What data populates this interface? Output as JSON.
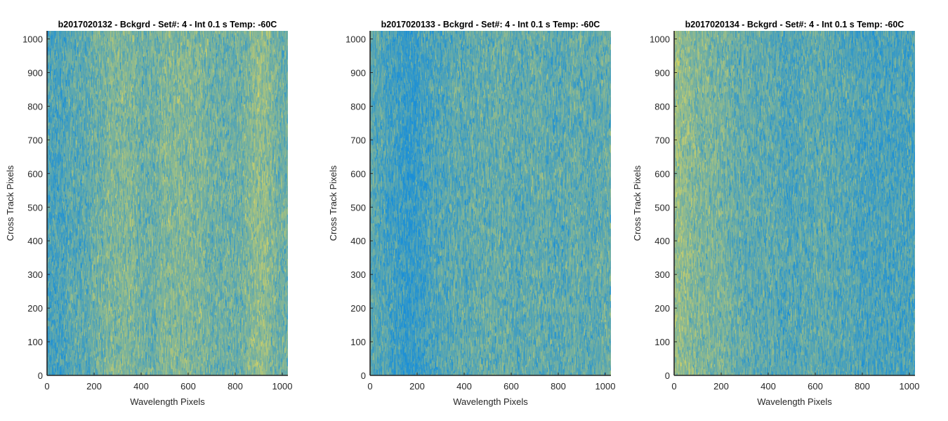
{
  "chart_data": [
    {
      "type": "heatmap",
      "title": "b2017020132 - Bckgrd - Set#: 4 - Int 0.1 s Temp: -60C",
      "xlabel": "Wavelength Pixels",
      "ylabel": "Cross Track Pixels",
      "xlim": [
        0,
        1024
      ],
      "ylim": [
        0,
        1024
      ],
      "xticks": [
        "0",
        "200",
        "400",
        "600",
        "800",
        "1000"
      ],
      "yticks": [
        "0",
        "100",
        "200",
        "300",
        "400",
        "500",
        "600",
        "700",
        "800",
        "900",
        "1000"
      ],
      "colormap": "parula",
      "low_color": "#1a8fd8",
      "high_color": "#e2d85c",
      "column_intensity": [
        0.3,
        0.3,
        0.3,
        0.4,
        0.4,
        0.4,
        0.5,
        0.5,
        0.6,
        0.6,
        0.6,
        0.6,
        0.5,
        0.5,
        0.5,
        0.6,
        0.6,
        0.6,
        0.6,
        0.6,
        0.6,
        0.5,
        0.5,
        0.5,
        0.5,
        0.5,
        0.6,
        0.7,
        0.7,
        0.6,
        0.5,
        0.5
      ]
    },
    {
      "type": "heatmap",
      "title": "b2017020133 - Bckgrd - Set#: 4 - Int 0.1 s Temp: -60C",
      "xlabel": "Wavelength Pixels",
      "ylabel": "Cross Track Pixels",
      "xlim": [
        0,
        1024
      ],
      "ylim": [
        0,
        1024
      ],
      "xticks": [
        "0",
        "200",
        "400",
        "600",
        "800",
        "1000"
      ],
      "yticks": [
        "0",
        "100",
        "200",
        "300",
        "400",
        "500",
        "600",
        "700",
        "800",
        "900",
        "1000"
      ],
      "colormap": "parula",
      "low_color": "#1a8fd8",
      "high_color": "#e2d85c",
      "column_intensity": [
        0.4,
        0.35,
        0.3,
        0.25,
        0.2,
        0.15,
        0.2,
        0.25,
        0.3,
        0.35,
        0.35,
        0.4,
        0.4,
        0.4,
        0.45,
        0.45,
        0.45,
        0.45,
        0.45,
        0.4,
        0.4,
        0.45,
        0.45,
        0.4,
        0.4,
        0.4,
        0.45,
        0.45,
        0.4,
        0.4,
        0.45,
        0.45
      ]
    },
    {
      "type": "heatmap",
      "title": "b2017020134 - Bckgrd - Set#: 4 - Int 0.1 s Temp: -60C",
      "xlabel": "Wavelength Pixels",
      "ylabel": "Cross Track Pixels",
      "xlim": [
        0,
        1024
      ],
      "ylim": [
        0,
        1024
      ],
      "xticks": [
        "0",
        "200",
        "400",
        "600",
        "800",
        "1000"
      ],
      "yticks": [
        "0",
        "100",
        "200",
        "300",
        "400",
        "500",
        "600",
        "700",
        "800",
        "900",
        "1000"
      ],
      "colormap": "parula",
      "low_color": "#1a8fd8",
      "high_color": "#e2d85c",
      "column_intensity": [
        0.75,
        0.7,
        0.65,
        0.6,
        0.6,
        0.55,
        0.55,
        0.5,
        0.45,
        0.45,
        0.4,
        0.4,
        0.4,
        0.4,
        0.35,
        0.35,
        0.35,
        0.4,
        0.4,
        0.4,
        0.4,
        0.35,
        0.35,
        0.35,
        0.3,
        0.3,
        0.3,
        0.3,
        0.3,
        0.3,
        0.3,
        0.3
      ]
    }
  ]
}
